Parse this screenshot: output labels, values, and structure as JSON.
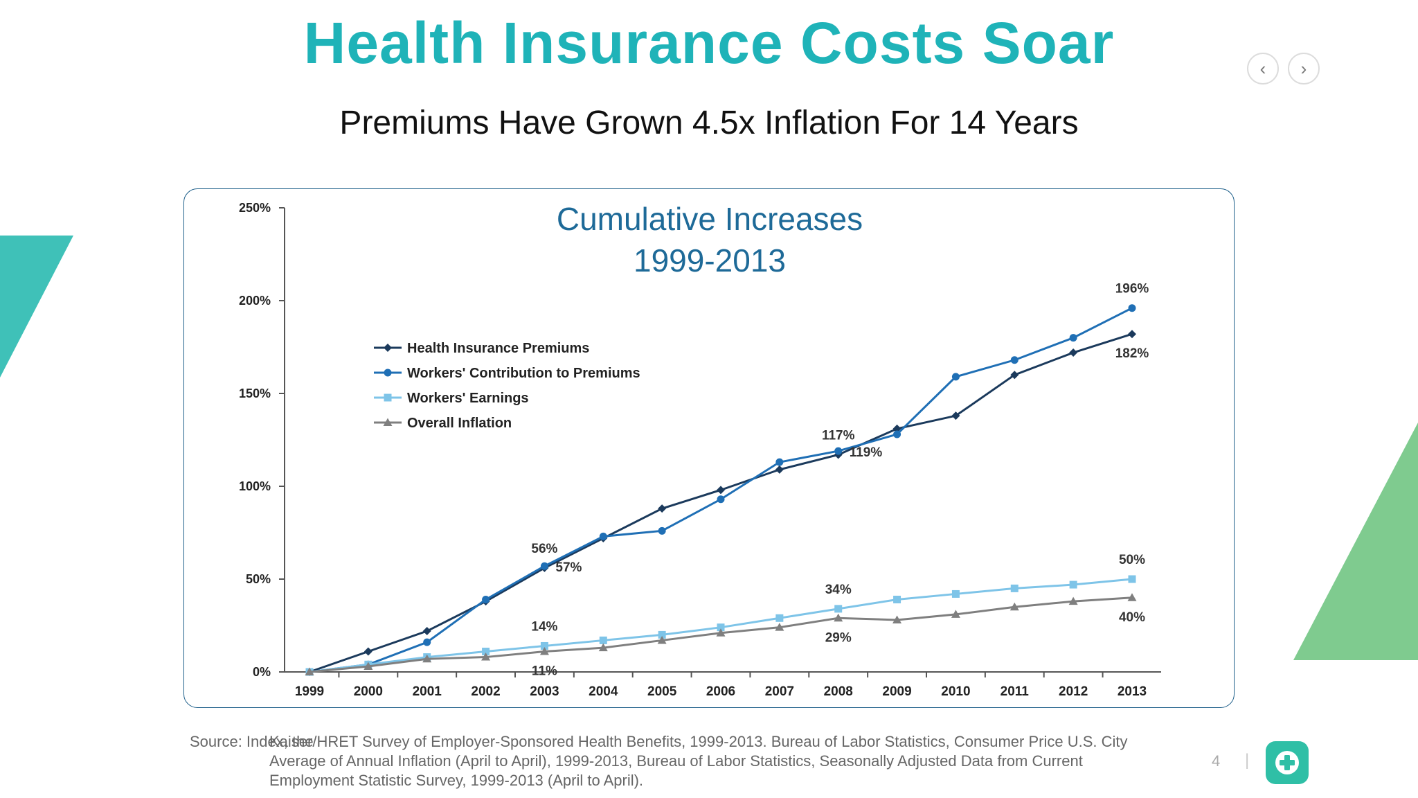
{
  "slide": {
    "title": "Health Insurance Costs Soar",
    "subtitle": "Premiums Have Grown 4.5x Inflation For 14 Years",
    "page_number": "4",
    "page_separator": "|",
    "nav": {
      "prev_icon": "chevron-left-icon",
      "next_icon": "chevron-right-icon",
      "prev_glyph": "‹",
      "next_glyph": "›"
    },
    "logo_icon": "medical-cross-icon",
    "colors": {
      "title": "#1fb3b8",
      "accent_left": "#3fc1b8",
      "accent_right": "#7fcb8f"
    }
  },
  "source": {
    "label": "Source: Index, the",
    "text": "Kaiser/HRET Survey of Employer-Sponsored Health Benefits, 1999-2013.  Bureau of Labor Statistics, Consumer Price U.S. City Average of Annual Inflation (April to April), 1999-2013, Bureau of Labor Statistics, Seasonally Adjusted Data from Current Employment Statistic Survey, 1999-2013 (April to April)."
  },
  "chart_data": {
    "type": "line",
    "title": "Cumulative Increases",
    "subtitle": "1999-2013",
    "xlabel": "",
    "ylabel": "",
    "x": [
      "1999",
      "2000",
      "2001",
      "2002",
      "2003",
      "2004",
      "2005",
      "2006",
      "2007",
      "2008",
      "2009",
      "2010",
      "2011",
      "2012",
      "2013"
    ],
    "ylim": [
      0,
      250
    ],
    "yticks": [
      0,
      50,
      100,
      150,
      200,
      250
    ],
    "ytick_labels": [
      "0%",
      "50%",
      "100%",
      "150%",
      "200%",
      "250%"
    ],
    "grid": false,
    "legend": "top-left",
    "series": [
      {
        "name": "Health Insurance Premiums",
        "color": "#1b3a5c",
        "marker": "diamond",
        "values": [
          0,
          11,
          22,
          38,
          56,
          72,
          88,
          98,
          109,
          117,
          131,
          138,
          160,
          172,
          182
        ]
      },
      {
        "name": "Workers' Contribution to Premiums",
        "color": "#1f6fb5",
        "marker": "circle",
        "values": [
          0,
          4,
          16,
          39,
          57,
          73,
          76,
          93,
          113,
          119,
          128,
          159,
          168,
          180,
          196
        ]
      },
      {
        "name": "Workers' Earnings",
        "color": "#7ec4e8",
        "marker": "square",
        "values": [
          0,
          4,
          8,
          11,
          14,
          17,
          20,
          24,
          29,
          34,
          39,
          42,
          45,
          47,
          50
        ]
      },
      {
        "name": "Overall Inflation",
        "color": "#7f7f7f",
        "marker": "triangle",
        "values": [
          0,
          3,
          7,
          8,
          11,
          13,
          17,
          21,
          24,
          29,
          28,
          31,
          35,
          38,
          40
        ]
      }
    ],
    "annotations": [
      {
        "text": "56%",
        "x": "2003",
        "y": 56,
        "pos": "above"
      },
      {
        "text": "57%",
        "x": "2003",
        "y": 57,
        "pos": "right"
      },
      {
        "text": "117%",
        "x": "2008",
        "y": 117,
        "pos": "above"
      },
      {
        "text": "119%",
        "x": "2008",
        "y": 119,
        "pos": "right"
      },
      {
        "text": "196%",
        "x": "2013",
        "y": 196,
        "pos": "above"
      },
      {
        "text": "182%",
        "x": "2013",
        "y": 182,
        "pos": "below"
      },
      {
        "text": "14%",
        "x": "2003",
        "y": 14,
        "pos": "above"
      },
      {
        "text": "11%",
        "x": "2003",
        "y": 11,
        "pos": "below"
      },
      {
        "text": "34%",
        "x": "2008",
        "y": 34,
        "pos": "above"
      },
      {
        "text": "29%",
        "x": "2008",
        "y": 29,
        "pos": "below"
      },
      {
        "text": "50%",
        "x": "2013",
        "y": 50,
        "pos": "above"
      },
      {
        "text": "40%",
        "x": "2013",
        "y": 40,
        "pos": "below"
      }
    ]
  }
}
